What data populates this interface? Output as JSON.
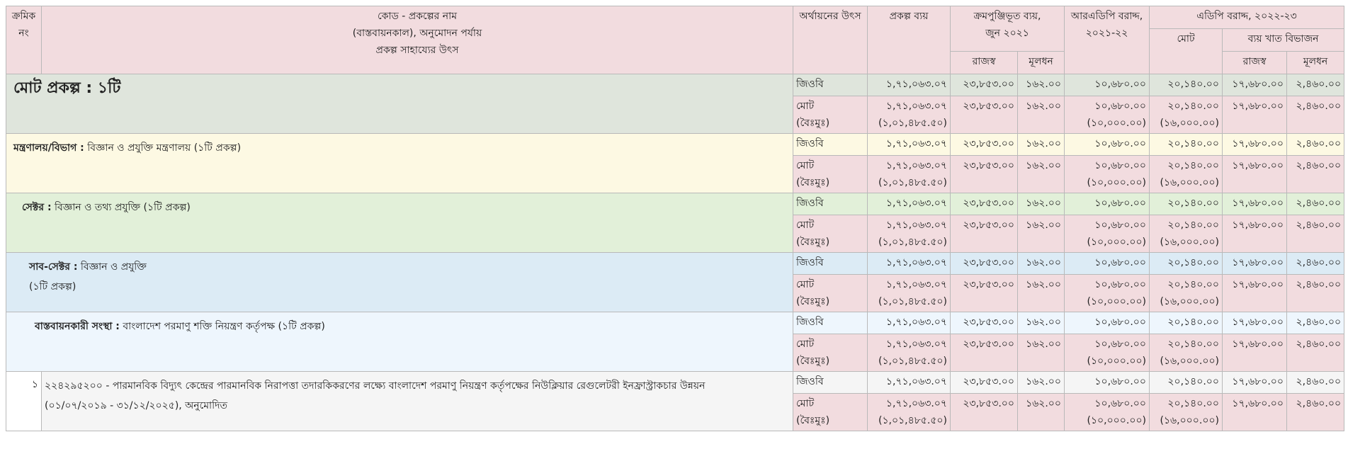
{
  "header": {
    "serial": [
      "ক্রমিক",
      "নং"
    ],
    "project": [
      "কোড - প্রকল্পের নাম",
      "(বাস্তবায়নকাল), অনুমোদন পর্যায়",
      "প্রকল্প সাহায্যের উৎস"
    ],
    "source": "অর্থায়নের উৎস",
    "cost": "প্রকল্প ব্যয়",
    "cumulative": [
      "ক্রমপুঞ্জিভূত ব্যয়,",
      "জুন ২০২১"
    ],
    "revenue_1": "রাজস্ব",
    "capital_1": "মূলধন",
    "radp": [
      "আরএডিপি বরাদ্দ,",
      "২০২১-২২"
    ],
    "adp": "এডিপি বরাদ্দ, ২০২২-২৩",
    "adp_total": "মোট",
    "breakdown": "ব্যয় খাত বিভাজন",
    "revenue_2": "রাজস্ব",
    "capital_2": "মূলধন"
  },
  "sections": [
    {
      "title": "মোট প্রকল্প : ১টি",
      "rows": [
        {
          "source": [
            "জিওবি"
          ],
          "cells": [
            [
              "১,৭১,০৬৩.০৭"
            ],
            [
              "২৩,৮৫৩.০০"
            ],
            [
              "১৬২.০০"
            ],
            [
              "১০,৬৮০.০০"
            ],
            [
              "২০,১৪০.০০"
            ],
            [
              "১৭,৬৮০.০০"
            ],
            [
              "২,৪৬০.০০"
            ]
          ]
        },
        {
          "source": [
            "মোট",
            "(বৈঃমুঃ)"
          ],
          "cells": [
            [
              "১,৭১,০৬৩.০৭",
              "(১,০১,৪৮৫.৫০)"
            ],
            [
              "২৩,৮৫৩.০০"
            ],
            [
              "১৬২.০০"
            ],
            [
              "১০,৬৮০.০০",
              "(১০,০০০.০০)"
            ],
            [
              "২০,১৪০.০০",
              "(১৬,০০০.০০)"
            ],
            [
              "১৭,৬৮০.০০"
            ],
            [
              "২,৪৬০.০০"
            ]
          ]
        }
      ]
    },
    {
      "prefix": "মন্ত্রণালয়/বিভাগ :",
      "text": [
        "বিজ্ঞান ও প্রযুক্তি মন্ত্রণালয় (১টি প্রকল্প)"
      ],
      "rows": [
        {
          "source": [
            "জিওবি"
          ],
          "cells": [
            [
              "১,৭১,০৬৩.০৭"
            ],
            [
              "২৩,৮৫৩.০০"
            ],
            [
              "১৬২.০০"
            ],
            [
              "১০,৬৮০.০০"
            ],
            [
              "২০,১৪০.০০"
            ],
            [
              "১৭,৬৮০.০০"
            ],
            [
              "২,৪৬০.০০"
            ]
          ]
        },
        {
          "source": [
            "মোট",
            "(বৈঃমুঃ)"
          ],
          "cells": [
            [
              "১,৭১,০৬৩.০৭",
              "(১,০১,৪৮৫.৫০)"
            ],
            [
              "২৩,৮৫৩.০০"
            ],
            [
              "১৬২.০০"
            ],
            [
              "১০,৬৮০.০০",
              "(১০,০০০.০০)"
            ],
            [
              "২০,১৪০.০০",
              "(১৬,০০০.০০)"
            ],
            [
              "১৭,৬৮০.০০"
            ],
            [
              "২,৪৬০.০০"
            ]
          ]
        }
      ]
    },
    {
      "prefix": "সেক্টর :",
      "text": [
        "বিজ্ঞান ও তথ্য প্রযুক্তি (১টি প্রকল্প)"
      ],
      "rows": [
        {
          "source": [
            "জিওবি"
          ],
          "cells": [
            [
              "১,৭১,০৬৩.০৭"
            ],
            [
              "২৩,৮৫৩.০০"
            ],
            [
              "১৬২.০০"
            ],
            [
              "১০,৬৮০.০০"
            ],
            [
              "২০,১৪০.০০"
            ],
            [
              "১৭,৬৮০.০০"
            ],
            [
              "২,৪৬০.০০"
            ]
          ]
        },
        {
          "source": [
            "মোট",
            "(বৈঃমুঃ)"
          ],
          "cells": [
            [
              "১,৭১,০৬৩.০৭",
              "(১,০১,৪৮৫.৫০)"
            ],
            [
              "২৩,৮৫৩.০০"
            ],
            [
              "১৬২.০০"
            ],
            [
              "১০,৬৮০.০০",
              "(১০,০০০.০০)"
            ],
            [
              "২০,১৪০.০০",
              "(১৬,০০০.০০)"
            ],
            [
              "১৭,৬৮০.০০"
            ],
            [
              "২,৪৬০.০০"
            ]
          ]
        }
      ]
    },
    {
      "prefix": "সাব-সেক্টর :",
      "text": [
        "বিজ্ঞান ও প্রযুক্তি",
        "(১টি প্রকল্প)"
      ],
      "rows": [
        {
          "source": [
            "জিওবি"
          ],
          "cells": [
            [
              "১,৭১,০৬৩.০৭"
            ],
            [
              "২৩,৮৫৩.০০"
            ],
            [
              "১৬২.০০"
            ],
            [
              "১০,৬৮০.০০"
            ],
            [
              "২০,১৪০.০০"
            ],
            [
              "১৭,৬৮০.০০"
            ],
            [
              "২,৪৬০.০০"
            ]
          ]
        },
        {
          "source": [
            "মোট",
            "(বৈঃমুঃ)"
          ],
          "cells": [
            [
              "১,৭১,০৬৩.০৭",
              "(১,০১,৪৮৫.৫০)"
            ],
            [
              "২৩,৮৫৩.০০"
            ],
            [
              "১৬২.০০"
            ],
            [
              "১০,৬৮০.০০",
              "(১০,০০০.০০)"
            ],
            [
              "২০,১৪০.০০",
              "(১৬,০০০.০০)"
            ],
            [
              "১৭,৬৮০.০০"
            ],
            [
              "২,৪৬০.০০"
            ]
          ]
        }
      ]
    },
    {
      "prefix": "বাস্তবায়নকারী সংস্থা :",
      "text": [
        "বাংলাদেশ পরমাণু শক্তি নিয়ন্ত্রণ কর্তৃপক্ষ (১টি প্রকল্প)"
      ],
      "rows": [
        {
          "source": [
            "জিওবি"
          ],
          "cells": [
            [
              "১,৭১,০৬৩.০৭"
            ],
            [
              "২৩,৮৫৩.০০"
            ],
            [
              "১৬২.০০"
            ],
            [
              "১০,৬৮০.০০"
            ],
            [
              "২০,১৪০.০০"
            ],
            [
              "১৭,৬৮০.০০"
            ],
            [
              "২,৪৬০.০০"
            ]
          ]
        },
        {
          "source": [
            "মোট",
            "(বৈঃমুঃ)"
          ],
          "cells": [
            [
              "১,৭১,০৬৩.০৭",
              "(১,০১,৪৮৫.৫০)"
            ],
            [
              "২৩,৮৫৩.০০"
            ],
            [
              "১৬২.০০"
            ],
            [
              "১০,৬৮০.০০",
              "(১০,০০০.০০)"
            ],
            [
              "২০,১৪০.০০",
              "(১৬,০০০.০০)"
            ],
            [
              "১৭,৬৮০.০০"
            ],
            [
              "২,৪৬০.০০"
            ]
          ]
        }
      ]
    },
    {
      "serial": "১",
      "text": [
        "২২৪২৯৫২০০ - পারমানবিক বিদ্যুৎ কেন্দ্রের পারমানবিক নিরাপত্তা তদারকিকরণের লক্ষ্যে বাংলাদেশ পরমাণু নিয়ন্ত্রণ কর্তৃপক্ষের নিউক্লিয়ার রেগুলেটরী ইনফ্রাস্ট্রাকচার উন্নয়ন",
        "(০১/০৭/২০১৯ - ৩১/১২/২০২৫), অনুমোদিত"
      ],
      "rows": [
        {
          "source": [
            "জিওবি"
          ],
          "cells": [
            [
              "১,৭১,০৬৩.০৭"
            ],
            [
              "২৩,৮৫৩.০০"
            ],
            [
              "১৬২.০০"
            ],
            [
              "১০,৬৮০.০০"
            ],
            [
              "২০,১৪০.০০"
            ],
            [
              "১৭,৬৮০.০০"
            ],
            [
              "২,৪৬০.০০"
            ]
          ]
        },
        {
          "source": [
            "মোট",
            "(বৈঃমুঃ)"
          ],
          "cells": [
            [
              "১,৭১,০৬৩.০৭",
              "(১,০১,৪৮৫.৫০)"
            ],
            [
              "২৩,৮৫৩.০০"
            ],
            [
              "১৬২.০০"
            ],
            [
              "১০,৬৮০.০০",
              "(১০,০০০.০০)"
            ],
            [
              "২০,১৪০.০০",
              "(১৬,০০০.০০)"
            ],
            [
              "১৭,৬৮০.০০"
            ],
            [
              "২,৪৬০.০০"
            ]
          ]
        }
      ]
    }
  ]
}
